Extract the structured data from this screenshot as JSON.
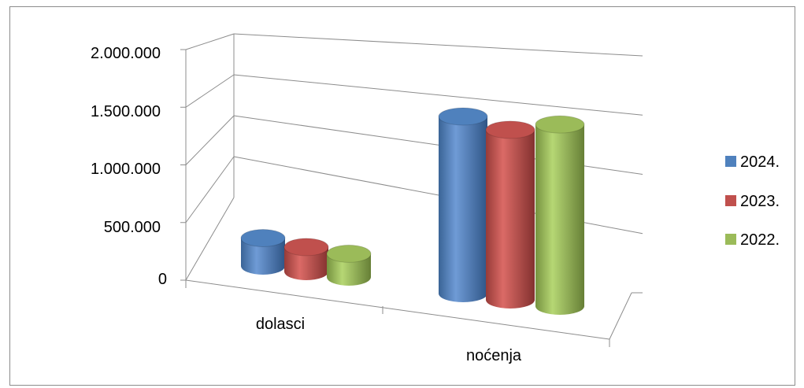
{
  "chart_data": {
    "type": "bar",
    "categories": [
      "dolasci",
      "noćenja"
    ],
    "series": [
      {
        "name": "2024.",
        "color": "#4F81BD",
        "values": [
          240000,
          1520000
        ]
      },
      {
        "name": "2023.",
        "color": "#C0504D",
        "values": [
          210000,
          1460000
        ]
      },
      {
        "name": "2022.",
        "color": "#9BBB59",
        "values": [
          200000,
          1560000
        ]
      }
    ],
    "ylim": [
      0,
      2000000
    ],
    "yticks": [
      "0",
      "500.000",
      "1.000.000",
      "1.500.000",
      "2.000.000"
    ],
    "grid": true,
    "legend_position": "right",
    "style": "3d-cylinder"
  }
}
